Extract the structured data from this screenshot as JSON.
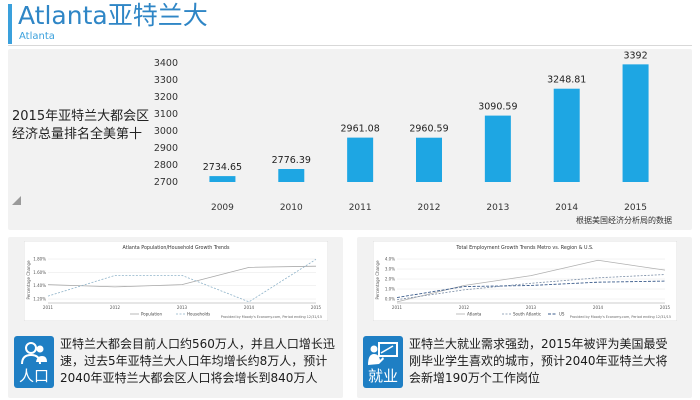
{
  "header": {
    "title": "Atlanta亚特兰大",
    "subtitle": "Atlanta"
  },
  "top_panel": {
    "headline_line1": "2015年亚特兰大都会区",
    "headline_line2": "经济总量排名全美第十",
    "source_note": "根据美国经济分析局的数据"
  },
  "colors": {
    "accent": "#3aa0dc",
    "title": "#2f86c6",
    "bar": "#1ea6e3",
    "panel_bg": "#f2f2f2",
    "icon_bg": "#1f7fc4"
  },
  "chart_data": [
    {
      "type": "bar",
      "categories": [
        "2009",
        "2010",
        "2011",
        "2012",
        "2013",
        "2014",
        "2015"
      ],
      "values": [
        2734.65,
        2776.39,
        2961.08,
        2960.59,
        3090.59,
        3248.81,
        3392
      ],
      "value_labels": [
        "2734.65",
        "2776.39",
        "2961.08",
        "2960.59",
        "3090.59",
        "3248.81",
        "3392"
      ],
      "y_ticks": [
        "3400",
        "3300",
        "3200",
        "3100",
        "3000",
        "2900",
        "2800",
        "2700"
      ],
      "ylim": [
        2700,
        3400
      ],
      "grid": false,
      "legend": "none"
    },
    {
      "type": "line",
      "title": "Atlanta Population/Household Growth Trends",
      "ylabel": "Percentage Change",
      "x": [
        "2011",
        "2012",
        "2013",
        "2014",
        "2015"
      ],
      "y_ticks": [
        "1.80%",
        "1.60%",
        "1.40%",
        "1.20%"
      ],
      "ylim": [
        1.1,
        1.9
      ],
      "series": [
        {
          "name": "Population",
          "values": [
            1.42,
            1.38,
            1.42,
            1.72,
            1.74
          ]
        },
        {
          "name": "Households",
          "values": [
            1.22,
            1.58,
            1.58,
            1.12,
            1.86
          ]
        }
      ],
      "footnote": "Provided by Moody's Economy.com, Period ending 12/31/15",
      "legend": "bottom"
    },
    {
      "type": "line",
      "title": "Total Employment Growth Trends Metro vs. Region & U.S.",
      "ylabel": "Percentage Change",
      "x": [
        "2011",
        "2012",
        "2013",
        "2014",
        "2015"
      ],
      "y_ticks": [
        "4.0%",
        "3.0%",
        "2.0%",
        "1.0%",
        "0.0%"
      ],
      "ylim": [
        0,
        4.2
      ],
      "series": [
        {
          "name": "Atlanta",
          "values": [
            0.1,
            1.6,
            2.5,
            3.9,
            3.0
          ]
        },
        {
          "name": "South Atlantic",
          "values": [
            0.3,
            1.2,
            1.8,
            2.3,
            2.6
          ]
        },
        {
          "name": "US",
          "values": [
            0.5,
            1.5,
            1.6,
            1.9,
            2.0
          ]
        }
      ],
      "footnote": "Provided by Moody's Economy.com, Period ending 12/31/15",
      "legend": "bottom"
    }
  ],
  "population": {
    "icon": "people-icon",
    "label": "人口",
    "line1": "亚特兰大都会目前人口约560万人，并且人口增长迅",
    "line2": "速，过去5年亚特兰大人口年均增长约8万人，预计",
    "line3": "2040年亚特兰大都会区人口将会增长到840万人"
  },
  "employment": {
    "icon": "presenter-icon",
    "label": "就业",
    "line1": "亚特兰大就业需求强劲，2015年被评为美国最受",
    "line2": "刚毕业学生喜欢的城市，预计2040年亚特兰大将",
    "line3": "会新增190万个工作岗位"
  }
}
